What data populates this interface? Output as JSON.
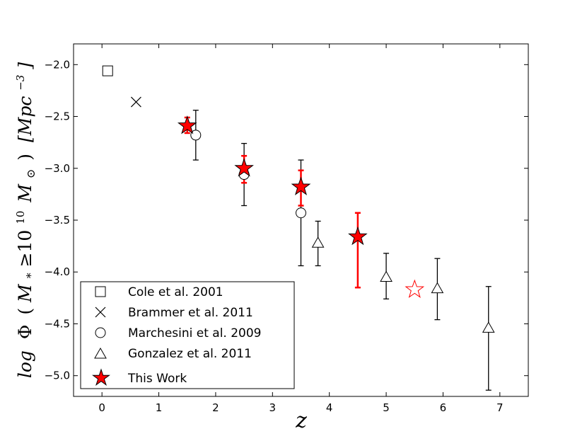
{
  "chart_data": {
    "type": "scatter",
    "xlabel": "z",
    "ylabel": "log  Φ (M*≥10^10 M⊙) [Mpc^-3]",
    "ylabel_parts": {
      "log": "log",
      "phi": "Φ",
      "open": "(",
      "m": "M",
      "star": "*",
      "ge": "≥10",
      "exp10": "10",
      "msun": "M",
      "sun": "⊙",
      "close": ")",
      "unit": "[Mpc",
      "exp": "−3",
      "unit_close": "]"
    },
    "xlim": [
      -0.5,
      7.5
    ],
    "ylim": [
      -5.2,
      -1.8
    ],
    "x_ticks": [
      0,
      1,
      2,
      3,
      4,
      5,
      6,
      7
    ],
    "x_tick_labels": [
      "0",
      "1",
      "2",
      "3",
      "4",
      "5",
      "6",
      "7"
    ],
    "y_ticks": [
      -2.0,
      -2.5,
      -3.0,
      -3.5,
      -4.0,
      -4.5,
      -5.0
    ],
    "y_tick_labels": [
      "−2.0",
      "−2.5",
      "−3.0",
      "−3.5",
      "−4.0",
      "−4.5",
      "−5.0"
    ],
    "legend_position": "lower-left",
    "series": [
      {
        "name": "Cole et al. 2001",
        "marker": "square",
        "color": "#000000",
        "points": [
          {
            "x": 0.1,
            "y": -2.06
          }
        ]
      },
      {
        "name": "Brammer et al. 2011",
        "marker": "x",
        "color": "#000000",
        "points": [
          {
            "x": 0.6,
            "y": -2.36
          }
        ]
      },
      {
        "name": "Marchesini et al. 2009",
        "marker": "circle",
        "color": "#000000",
        "points": [
          {
            "x": 1.65,
            "y": -2.68,
            "err_hi": -2.44,
            "err_lo": -2.92
          },
          {
            "x": 2.5,
            "y": -3.06,
            "err_hi": -2.76,
            "err_lo": -3.36
          },
          {
            "x": 3.5,
            "y": -3.43,
            "err_hi": -2.92,
            "err_lo": -3.94
          }
        ]
      },
      {
        "name": "Gonzalez et al. 2011",
        "marker": "triangle",
        "color": "#000000",
        "points": [
          {
            "x": 3.8,
            "y": -3.72,
            "err_hi": -3.51,
            "err_lo": -3.94
          },
          {
            "x": 5.0,
            "y": -4.05,
            "err_hi": -3.82,
            "err_lo": -4.26
          },
          {
            "x": 5.9,
            "y": -4.16,
            "err_hi": -3.87,
            "err_lo": -4.46
          },
          {
            "x": 6.8,
            "y": -4.54,
            "err_hi": -4.14,
            "err_lo": -5.14
          }
        ]
      },
      {
        "name": "This Work",
        "marker": "star",
        "color": "#ff0000",
        "points": [
          {
            "x": 1.5,
            "y": -2.59,
            "err_hi": -2.51,
            "err_lo": -2.66
          },
          {
            "x": 2.5,
            "y": -3.0,
            "err_hi": -2.88,
            "err_lo": -3.14
          },
          {
            "x": 3.5,
            "y": -3.18,
            "err_hi": -3.02,
            "err_lo": -3.36
          },
          {
            "x": 4.5,
            "y": -3.66,
            "err_hi": -3.43,
            "err_lo": -4.15
          }
        ],
        "open_points": [
          {
            "x": 5.5,
            "y": -4.17
          }
        ]
      }
    ]
  }
}
